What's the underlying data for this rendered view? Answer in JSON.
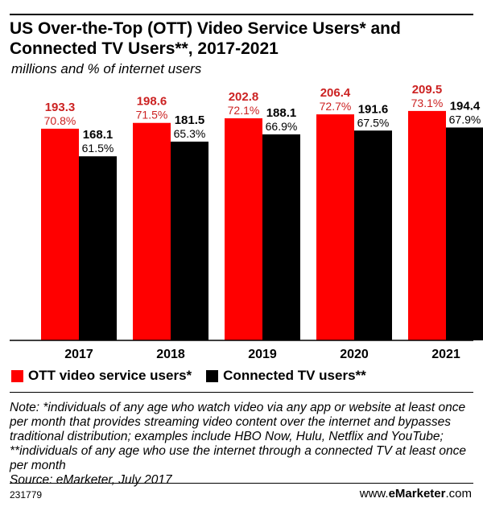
{
  "header": {
    "title": "US Over-the-Top (OTT) Video Service Users* and Connected TV Users**, 2017-2021",
    "subtitle": "millions and % of internet users"
  },
  "legend": {
    "series1": "OTT video service users*",
    "series2": "Connected TV users**"
  },
  "footer": {
    "note": "Note: *individuals of any age who watch video via any app or website at least once per month that provides streaming video content over the internet and bypasses traditional distribution; examples include HBO Now, Hulu, Netflix and YouTube; **individuals of any age who use the internet through a connected TV at least once per month",
    "source": "Source: eMarketer, July 2017",
    "chart_id": "231779",
    "brand_prefix": "www.",
    "brand_name": "eMarketer",
    "brand_suffix": ".com"
  },
  "colors": {
    "series1": "#ff0000",
    "series2": "#000000",
    "pct1_label": "#cc2222"
  },
  "chart_data": {
    "type": "bar",
    "categories": [
      "2017",
      "2018",
      "2019",
      "2020",
      "2021"
    ],
    "series": [
      {
        "name": "OTT video service users*",
        "values": [
          193.3,
          198.6,
          202.8,
          206.4,
          209.5
        ],
        "percent_labels": [
          "70.8%",
          "71.5%",
          "72.1%",
          "72.7%",
          "73.1%"
        ]
      },
      {
        "name": "Connected TV users**",
        "values": [
          168.1,
          181.5,
          188.1,
          191.6,
          194.4
        ],
        "percent_labels": [
          "61.5%",
          "65.3%",
          "66.9%",
          "67.5%",
          "67.9%"
        ]
      }
    ],
    "ylim": [
      0,
      230
    ],
    "xlabel": "",
    "ylabel": "",
    "grid": false,
    "legend": "bottom-left"
  }
}
